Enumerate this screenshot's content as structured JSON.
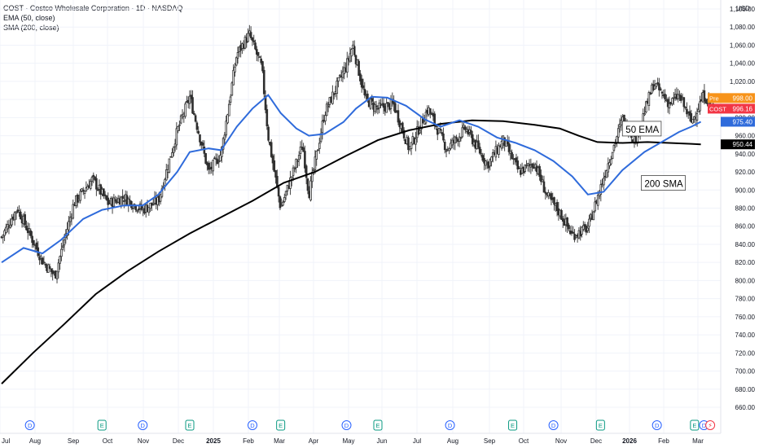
{
  "header": {
    "symbol_line": "COST · Costco Wholesale Corporation · 1D · NASDAQ",
    "ema_line": "EMA (50, close)",
    "sma_line": "SMA (200, close)"
  },
  "colors": {
    "up": "#2e2e2e",
    "down": "#2e2e2e",
    "ema": "#2f6bdb",
    "sma": "#000000",
    "grid": "#f0f3fa",
    "axis_text": "#131722",
    "pre_badge": "#f7931a",
    "cost_badge": "#f23645",
    "ema_badge": "#2f6bdb",
    "sma_badge": "#000000"
  },
  "chart_data": {
    "type": "candlestick",
    "currency_label": "USD",
    "y_ticks": [
      "1,100.00",
      "1,080.00",
      "1,060.00",
      "1,040.00",
      "1,020.00",
      "1,000.00",
      "980.00",
      "960.00",
      "940.00",
      "920.00",
      "900.00",
      "880.00",
      "860.00",
      "840.00",
      "820.00",
      "800.00",
      "780.00",
      "760.00",
      "740.00",
      "720.00",
      "700.00",
      "680.00",
      "660.00"
    ],
    "ylim": [
      655,
      1108
    ],
    "x_ticks": [
      "Jul",
      "Aug",
      "Sep",
      "Oct",
      "Nov",
      "Dec",
      "2025",
      "Feb",
      "Mar",
      "Apr",
      "May",
      "Jun",
      "Jul",
      "Aug",
      "Sep",
      "Oct",
      "Nov",
      "Dec",
      "2026",
      "Feb",
      "Mar"
    ],
    "price_path": [
      {
        "x": 0,
        "y": 848
      },
      {
        "x": 0.5,
        "y": 880
      },
      {
        "x": 1.3,
        "y": 822
      },
      {
        "x": 1.7,
        "y": 805
      },
      {
        "x": 2.3,
        "y": 885
      },
      {
        "x": 2.9,
        "y": 912
      },
      {
        "x": 3.4,
        "y": 885
      },
      {
        "x": 3.9,
        "y": 892
      },
      {
        "x": 4.5,
        "y": 878
      },
      {
        "x": 5.0,
        "y": 888
      },
      {
        "x": 5.6,
        "y": 965
      },
      {
        "x": 6.0,
        "y": 1003
      },
      {
        "x": 6.6,
        "y": 920
      },
      {
        "x": 7.0,
        "y": 940
      },
      {
        "x": 7.5,
        "y": 1050
      },
      {
        "x": 7.9,
        "y": 1072
      },
      {
        "x": 8.3,
        "y": 1035
      },
      {
        "x": 8.5,
        "y": 960
      },
      {
        "x": 8.9,
        "y": 880
      },
      {
        "x": 9.6,
        "y": 950
      },
      {
        "x": 9.8,
        "y": 895
      },
      {
        "x": 10.3,
        "y": 985
      },
      {
        "x": 11.0,
        "y": 1038
      },
      {
        "x": 11.2,
        "y": 1060
      },
      {
        "x": 11.6,
        "y": 1000
      },
      {
        "x": 12.0,
        "y": 990
      },
      {
        "x": 12.5,
        "y": 995
      },
      {
        "x": 13.0,
        "y": 945
      },
      {
        "x": 13.6,
        "y": 990
      },
      {
        "x": 14.2,
        "y": 945
      },
      {
        "x": 14.8,
        "y": 968
      },
      {
        "x": 15.5,
        "y": 928
      },
      {
        "x": 16.0,
        "y": 955
      },
      {
        "x": 16.5,
        "y": 920
      },
      {
        "x": 17.0,
        "y": 930
      },
      {
        "x": 17.4,
        "y": 893
      },
      {
        "x": 17.8,
        "y": 875
      },
      {
        "x": 18.2,
        "y": 850
      },
      {
        "x": 18.7,
        "y": 858
      },
      {
        "x": 19.3,
        "y": 925
      },
      {
        "x": 19.8,
        "y": 978
      },
      {
        "x": 20.2,
        "y": 955
      },
      {
        "x": 20.8,
        "y": 1018
      },
      {
        "x": 21.3,
        "y": 995
      },
      {
        "x": 21.6,
        "y": 1005
      },
      {
        "x": 22.0,
        "y": 975
      },
      {
        "x": 22.4,
        "y": 1005
      },
      {
        "x": 22.7,
        "y": 990
      }
    ],
    "series": [
      {
        "name": "EMA (50, close)",
        "points": [
          {
            "x": 0,
            "y": 820
          },
          {
            "x": 0.7,
            "y": 836
          },
          {
            "x": 1.3,
            "y": 830
          },
          {
            "x": 1.9,
            "y": 845
          },
          {
            "x": 2.6,
            "y": 868
          },
          {
            "x": 3.2,
            "y": 878
          },
          {
            "x": 3.9,
            "y": 883
          },
          {
            "x": 4.5,
            "y": 883
          },
          {
            "x": 5.0,
            "y": 895
          },
          {
            "x": 5.6,
            "y": 920
          },
          {
            "x": 6.0,
            "y": 942
          },
          {
            "x": 6.6,
            "y": 946
          },
          {
            "x": 7.0,
            "y": 944
          },
          {
            "x": 7.5,
            "y": 970
          },
          {
            "x": 8.0,
            "y": 990
          },
          {
            "x": 8.5,
            "y": 1005
          },
          {
            "x": 8.9,
            "y": 985
          },
          {
            "x": 9.4,
            "y": 968
          },
          {
            "x": 9.8,
            "y": 960
          },
          {
            "x": 10.3,
            "y": 962
          },
          {
            "x": 10.9,
            "y": 975
          },
          {
            "x": 11.3,
            "y": 990
          },
          {
            "x": 11.8,
            "y": 1003
          },
          {
            "x": 12.3,
            "y": 1002
          },
          {
            "x": 12.9,
            "y": 993
          },
          {
            "x": 13.5,
            "y": 978
          },
          {
            "x": 14.0,
            "y": 970
          },
          {
            "x": 14.6,
            "y": 977
          },
          {
            "x": 15.2,
            "y": 970
          },
          {
            "x": 15.8,
            "y": 958
          },
          {
            "x": 16.4,
            "y": 952
          },
          {
            "x": 17.0,
            "y": 944
          },
          {
            "x": 17.6,
            "y": 932
          },
          {
            "x": 18.2,
            "y": 915
          },
          {
            "x": 18.7,
            "y": 895
          },
          {
            "x": 19.2,
            "y": 898
          },
          {
            "x": 19.8,
            "y": 922
          },
          {
            "x": 20.5,
            "y": 942
          },
          {
            "x": 21.0,
            "y": 952
          },
          {
            "x": 21.6,
            "y": 964
          },
          {
            "x": 22.0,
            "y": 970
          },
          {
            "x": 22.3,
            "y": 975.4
          }
        ],
        "last_value": "975.40"
      },
      {
        "name": "SMA (200, close)",
        "points": [
          {
            "x": 0,
            "y": 686
          },
          {
            "x": 1.0,
            "y": 720
          },
          {
            "x": 2.0,
            "y": 752
          },
          {
            "x": 3.0,
            "y": 785
          },
          {
            "x": 4.0,
            "y": 810
          },
          {
            "x": 5.0,
            "y": 832
          },
          {
            "x": 6.0,
            "y": 852
          },
          {
            "x": 7.0,
            "y": 870
          },
          {
            "x": 8.0,
            "y": 888
          },
          {
            "x": 9.0,
            "y": 908
          },
          {
            "x": 10.0,
            "y": 920
          },
          {
            "x": 11.0,
            "y": 938
          },
          {
            "x": 12.0,
            "y": 955
          },
          {
            "x": 13.0,
            "y": 966
          },
          {
            "x": 14.0,
            "y": 973
          },
          {
            "x": 15.0,
            "y": 977
          },
          {
            "x": 16.0,
            "y": 976
          },
          {
            "x": 17.0,
            "y": 972
          },
          {
            "x": 17.8,
            "y": 968
          },
          {
            "x": 18.4,
            "y": 960
          },
          {
            "x": 19.0,
            "y": 953
          },
          {
            "x": 19.8,
            "y": 952
          },
          {
            "x": 20.6,
            "y": 953
          },
          {
            "x": 21.3,
            "y": 952
          },
          {
            "x": 22.0,
            "y": 951
          },
          {
            "x": 22.3,
            "y": 950.44
          }
        ],
        "last_value": "950.44"
      }
    ],
    "price_badges": [
      {
        "label": "Pre",
        "value": "998.00",
        "y": 998
      },
      {
        "label": "COST",
        "value": "996.16",
        "y": 996.16
      }
    ],
    "annotations": [
      {
        "text": "50 EMA",
        "x": 19.8,
        "y": 966
      },
      {
        "text": "200 SMA",
        "x": 20.4,
        "y": 906
      }
    ],
    "event_markers": [
      {
        "x": 0.9,
        "kind": "D"
      },
      {
        "x": 3.2,
        "kind": "E"
      },
      {
        "x": 4.5,
        "kind": "D"
      },
      {
        "x": 6.0,
        "kind": "E"
      },
      {
        "x": 8.0,
        "kind": "D"
      },
      {
        "x": 8.9,
        "kind": "E"
      },
      {
        "x": 11.0,
        "kind": "D"
      },
      {
        "x": 12.0,
        "kind": "E"
      },
      {
        "x": 14.3,
        "kind": "D"
      },
      {
        "x": 16.3,
        "kind": "E"
      },
      {
        "x": 17.6,
        "kind": "D"
      },
      {
        "x": 19.1,
        "kind": "E"
      },
      {
        "x": 20.9,
        "kind": "D"
      },
      {
        "x": 22.1,
        "kind": "E"
      },
      {
        "x": 22.4,
        "kind": "D"
      },
      {
        "x": 22.6,
        "kind": "split"
      }
    ]
  }
}
